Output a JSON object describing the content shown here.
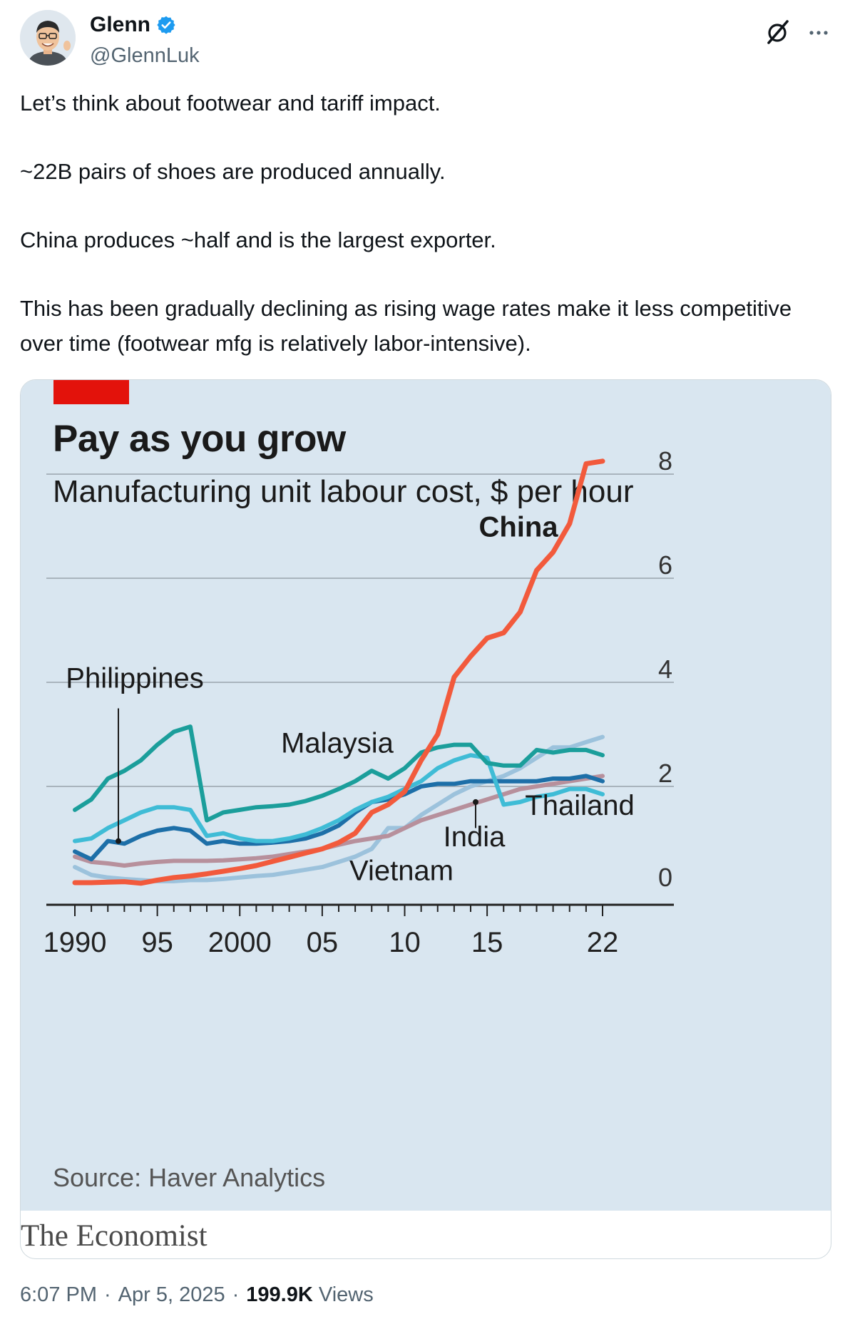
{
  "author": {
    "name": "Glenn",
    "handle": "@GlennLuk"
  },
  "tweet": {
    "paragraphs": [
      "Let’s think about footwear and tariff impact.",
      "~22B pairs of shoes are produced annually.",
      "China produces ~half and is the largest exporter.",
      "This has been gradually declining as rising wage rates make it less competitive over time (footwear mfg is relatively labor-intensive)."
    ]
  },
  "meta": {
    "time": "6:07 PM",
    "date": "Apr 5, 2025",
    "views_count": "199.9K",
    "views_label": "Views",
    "separator": "·"
  },
  "card": {
    "source": "Source: Haver Analytics",
    "brand": "The Economist"
  },
  "colors": {
    "china": "#f25a3c",
    "malaysia": "#1b9e9b",
    "thailand": "#3fbcd6",
    "philippines": "#1d6fa8",
    "india": "#b7909c",
    "vietnam": "#9cc2dc",
    "chart_background": "#d9e6f0",
    "economist_red": "#e3120b",
    "verified": "#1d9bf0"
  },
  "icons": {
    "verified": "verified-badge-icon",
    "grok": "grok-icon",
    "more": "more-icon"
  },
  "chart_data": {
    "type": "line",
    "title": "Pay as you grow",
    "subtitle": "Manufacturing unit labour cost, $ per hour",
    "x_tick_labels": [
      {
        "x": 1990,
        "label": "1990"
      },
      {
        "x": 1995,
        "label": "95"
      },
      {
        "x": 2000,
        "label": "2000"
      },
      {
        "x": 2005,
        "label": "05"
      },
      {
        "x": 2010,
        "label": "10"
      },
      {
        "x": 2015,
        "label": "15"
      },
      {
        "x": 2022,
        "label": "22"
      }
    ],
    "y_ticks": [
      0,
      2,
      4,
      6,
      8
    ],
    "xlim": [
      1990,
      2022
    ],
    "ylim": [
      0,
      8
    ],
    "grid": true,
    "series": [
      {
        "name": "China",
        "key": "china",
        "bold": true,
        "x": [
          1990,
          1991,
          1992,
          1993,
          1994,
          1995,
          1996,
          1997,
          1998,
          1999,
          2000,
          2001,
          2002,
          2003,
          2004,
          2005,
          2006,
          2007,
          2008,
          2009,
          2010,
          2011,
          2012,
          2013,
          2014,
          2015,
          2016,
          2017,
          2018,
          2019,
          2020,
          2021,
          2022
        ],
        "y": [
          0.15,
          0.15,
          0.16,
          0.17,
          0.14,
          0.2,
          0.25,
          0.28,
          0.32,
          0.37,
          0.42,
          0.48,
          0.56,
          0.64,
          0.72,
          0.8,
          0.92,
          1.1,
          1.5,
          1.65,
          1.9,
          2.5,
          3,
          4.1,
          4.5,
          4.85,
          4.95,
          5.35,
          6.15,
          6.5,
          7.05,
          8.2,
          8.25
        ]
      },
      {
        "name": "Malaysia",
        "key": "malaysia",
        "x": [
          1990,
          1991,
          1992,
          1993,
          1994,
          1995,
          1996,
          1997,
          1998,
          1999,
          2000,
          2001,
          2002,
          2003,
          2004,
          2005,
          2006,
          2007,
          2008,
          2009,
          2010,
          2011,
          2012,
          2013,
          2014,
          2015,
          2016,
          2017,
          2018,
          2019,
          2020,
          2021,
          2022
        ],
        "y": [
          1.55,
          1.75,
          2.15,
          2.3,
          2.5,
          2.8,
          3.05,
          3.15,
          1.35,
          1.5,
          1.55,
          1.6,
          1.62,
          1.65,
          1.72,
          1.82,
          1.95,
          2.1,
          2.3,
          2.15,
          2.35,
          2.65,
          2.75,
          2.8,
          2.8,
          2.45,
          2.4,
          2.4,
          2.7,
          2.65,
          2.7,
          2.7,
          2.6
        ]
      },
      {
        "name": "Thailand",
        "key": "thailand",
        "x": [
          1990,
          1991,
          1992,
          1993,
          1994,
          1995,
          1996,
          1997,
          1998,
          1999,
          2000,
          2001,
          2002,
          2003,
          2004,
          2005,
          2006,
          2007,
          2008,
          2009,
          2010,
          2011,
          2012,
          2013,
          2014,
          2015,
          2016,
          2017,
          2018,
          2019,
          2020,
          2021,
          2022
        ],
        "y": [
          0.95,
          1,
          1.2,
          1.35,
          1.5,
          1.6,
          1.6,
          1.55,
          1.05,
          1.1,
          1,
          0.95,
          0.95,
          1,
          1.08,
          1.2,
          1.35,
          1.55,
          1.7,
          1.8,
          1.95,
          2.1,
          2.35,
          2.5,
          2.6,
          2.55,
          1.65,
          1.7,
          1.8,
          1.85,
          1.95,
          1.95,
          1.85
        ]
      },
      {
        "name": "Philippines",
        "key": "philippines",
        "x": [
          1990,
          1991,
          1992,
          1993,
          1994,
          1995,
          1996,
          1997,
          1998,
          1999,
          2000,
          2001,
          2002,
          2003,
          2004,
          2005,
          2006,
          2007,
          2008,
          2009,
          2010,
          2011,
          2012,
          2013,
          2014,
          2015,
          2016,
          2017,
          2018,
          2019,
          2020,
          2021,
          2022
        ],
        "y": [
          0.75,
          0.6,
          0.95,
          0.9,
          1.05,
          1.15,
          1.2,
          1.15,
          0.9,
          0.95,
          0.9,
          0.9,
          0.92,
          0.95,
          1.0,
          1.1,
          1.25,
          1.5,
          1.7,
          1.75,
          1.85,
          2.0,
          2.05,
          2.05,
          2.1,
          2.1,
          2.1,
          2.1,
          2.1,
          2.15,
          2.15,
          2.2,
          2.1
        ]
      },
      {
        "name": "India",
        "key": "india",
        "x": [
          1990,
          1991,
          1992,
          1993,
          1994,
          1995,
          1996,
          1997,
          1998,
          1999,
          2000,
          2001,
          2002,
          2003,
          2004,
          2005,
          2006,
          2007,
          2008,
          2009,
          2010,
          2011,
          2012,
          2013,
          2014,
          2015,
          2016,
          2017,
          2018,
          2019,
          2020,
          2021,
          2022
        ],
        "y": [
          0.65,
          0.55,
          0.52,
          0.48,
          0.52,
          0.55,
          0.57,
          0.57,
          0.57,
          0.58,
          0.6,
          0.62,
          0.65,
          0.7,
          0.75,
          0.8,
          0.88,
          0.95,
          1.0,
          1.05,
          1.2,
          1.35,
          1.45,
          1.55,
          1.65,
          1.75,
          1.85,
          1.95,
          2.0,
          2.05,
          2.1,
          2.15,
          2.2
        ]
      },
      {
        "name": "Vietnam",
        "key": "vietnam",
        "x": [
          1990,
          1991,
          1992,
          1993,
          1994,
          1995,
          1996,
          1997,
          1998,
          1999,
          2000,
          2001,
          2002,
          2003,
          2004,
          2005,
          2006,
          2007,
          2008,
          2009,
          2010,
          2011,
          2012,
          2013,
          2014,
          2015,
          2016,
          2017,
          2018,
          2019,
          2020,
          2021,
          2022
        ],
        "y": [
          0.45,
          0.3,
          0.25,
          0.22,
          0.2,
          0.18,
          0.18,
          0.2,
          0.2,
          0.22,
          0.25,
          0.28,
          0.3,
          0.35,
          0.4,
          0.45,
          0.55,
          0.65,
          0.8,
          1.2,
          1.2,
          1.45,
          1.65,
          1.85,
          2.0,
          2.1,
          2.2,
          2.35,
          2.55,
          2.75,
          2.75,
          2.85,
          2.95
        ]
      }
    ],
    "labels": {
      "china": "China",
      "malaysia": "Malaysia",
      "thailand": "Thailand",
      "philippines": "Philippines",
      "india": "India",
      "vietnam": "Vietnam"
    }
  }
}
